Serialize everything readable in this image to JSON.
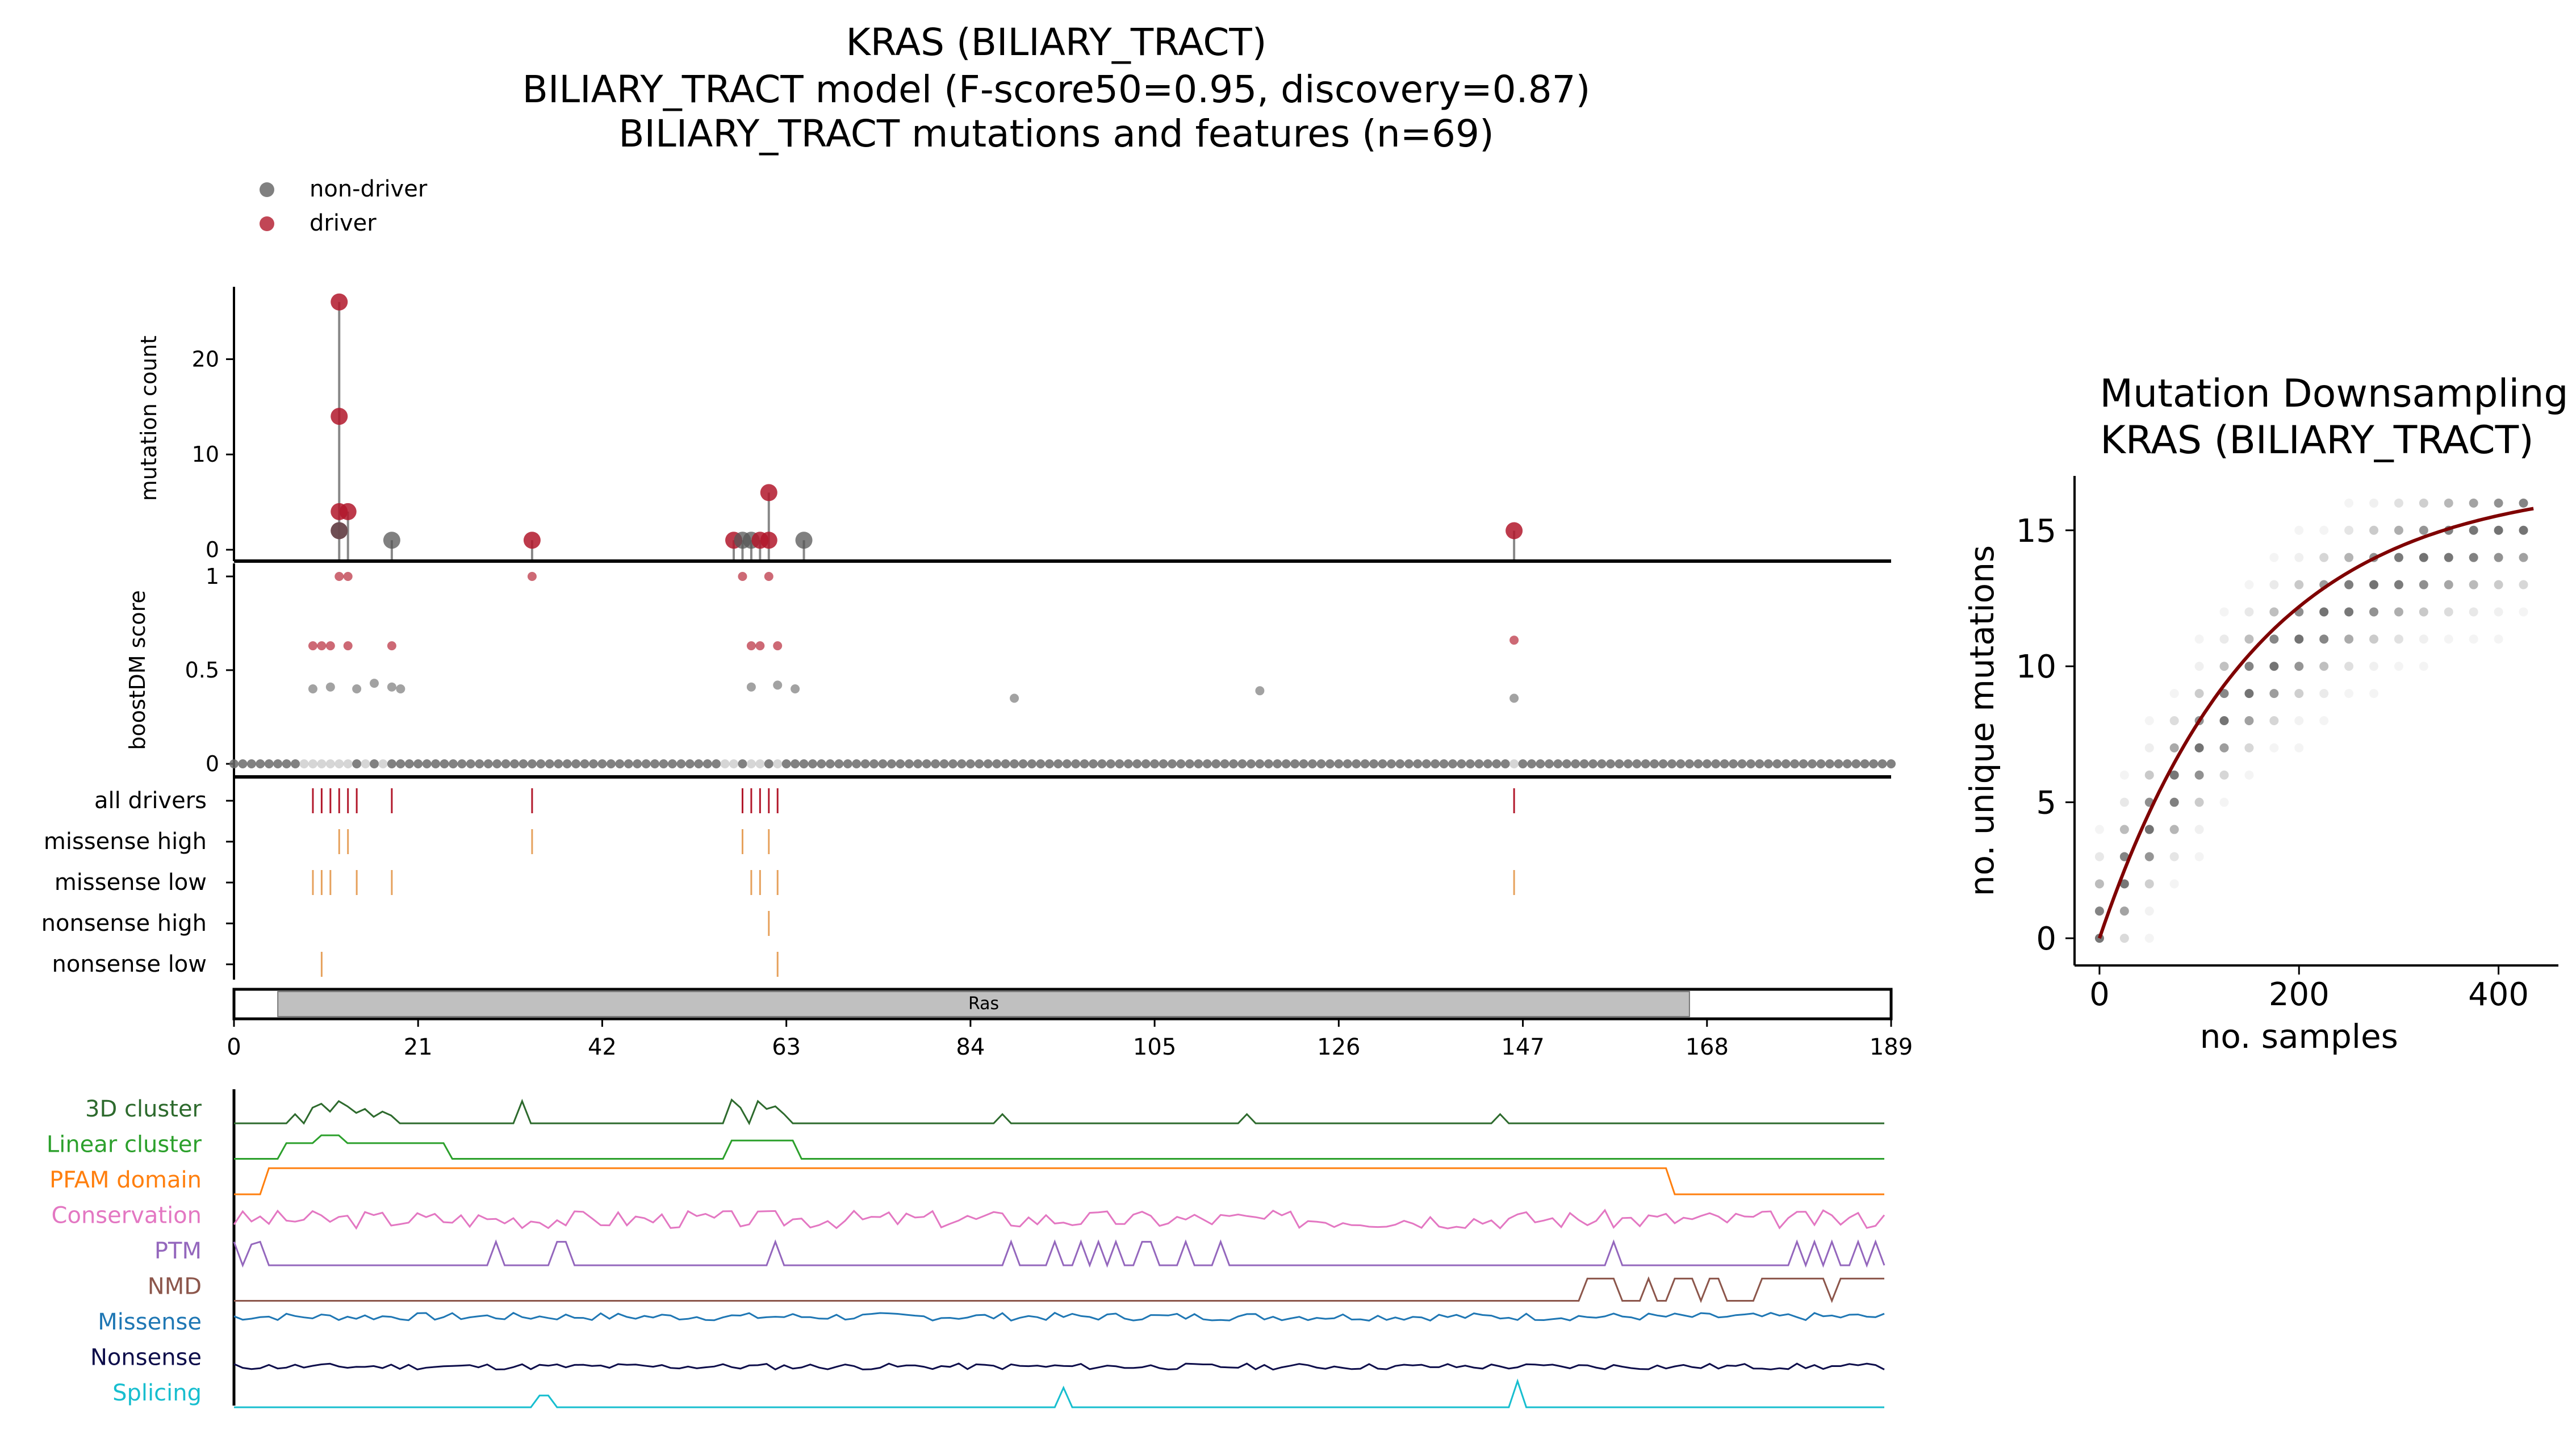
{
  "colors": {
    "driver": "#b2182b",
    "nondriver": "#555555",
    "stem": "#888888",
    "track_orange": "#e6a15c",
    "domain_fill": "#c0c0c0",
    "downsampling_curve": "#7f0000"
  },
  "main_title": {
    "line1": "KRAS (BILIARY_TRACT)",
    "line2": "BILIARY_TRACT model (F-score50=0.95, discovery=0.87)",
    "line3": "BILIARY_TRACT mutations and features (n=69)"
  },
  "legend": {
    "nondriver_label": "non-driver",
    "driver_label": "driver"
  },
  "chart_data": [
    {
      "type": "scatter",
      "name_key": "lollipop",
      "ylabel": "mutation count",
      "ylim": [
        0,
        27
      ],
      "yticks": [
        0,
        10,
        20
      ],
      "points": [
        {
          "x": 12,
          "y": 26,
          "driver": true
        },
        {
          "x": 12,
          "y": 14,
          "driver": true
        },
        {
          "x": 12,
          "y": 4,
          "driver": true
        },
        {
          "x": 13,
          "y": 4,
          "driver": true
        },
        {
          "x": 12,
          "y": 2,
          "driver": true
        },
        {
          "x": 12,
          "y": 2,
          "driver": false
        },
        {
          "x": 18,
          "y": 1,
          "driver": false
        },
        {
          "x": 34,
          "y": 1,
          "driver": true
        },
        {
          "x": 57,
          "y": 1,
          "driver": true
        },
        {
          "x": 58,
          "y": 1,
          "driver": false
        },
        {
          "x": 59,
          "y": 1,
          "driver": false
        },
        {
          "x": 60,
          "y": 1,
          "driver": true
        },
        {
          "x": 61,
          "y": 6,
          "driver": true
        },
        {
          "x": 61,
          "y": 1,
          "driver": true
        },
        {
          "x": 65,
          "y": 1,
          "driver": false
        },
        {
          "x": 146,
          "y": 2,
          "driver": true
        }
      ]
    },
    {
      "type": "scatter",
      "name_key": "boostdm",
      "ylabel": "boostDM score",
      "ylim": [
        0,
        1
      ],
      "yticks": [
        {
          "v": 0,
          "label": "0"
        },
        {
          "v": 0.5,
          "label": "0.5"
        },
        {
          "v": 1,
          "label": "1"
        }
      ],
      "baseline_gaps": [
        8,
        9,
        10,
        11,
        12,
        13,
        15,
        17,
        56,
        57,
        59,
        60,
        62,
        146
      ],
      "points": [
        {
          "x": 12,
          "y": 1,
          "driver": true
        },
        {
          "x": 13,
          "y": 1,
          "driver": true
        },
        {
          "x": 34,
          "y": 1,
          "driver": true
        },
        {
          "x": 58,
          "y": 1,
          "driver": true
        },
        {
          "x": 61,
          "y": 1,
          "driver": true
        },
        {
          "x": 9,
          "y": 0.63,
          "driver": true
        },
        {
          "x": 10,
          "y": 0.63,
          "driver": true
        },
        {
          "x": 11,
          "y": 0.63,
          "driver": true
        },
        {
          "x": 13,
          "y": 0.63,
          "driver": true
        },
        {
          "x": 18,
          "y": 0.63,
          "driver": true
        },
        {
          "x": 59,
          "y": 0.63,
          "driver": true
        },
        {
          "x": 60,
          "y": 0.63,
          "driver": true
        },
        {
          "x": 62,
          "y": 0.63,
          "driver": true
        },
        {
          "x": 146,
          "y": 0.66,
          "driver": true
        },
        {
          "x": 9,
          "y": 0.4,
          "driver": false
        },
        {
          "x": 11,
          "y": 0.41,
          "driver": false
        },
        {
          "x": 14,
          "y": 0.4,
          "driver": false
        },
        {
          "x": 16,
          "y": 0.43,
          "driver": false
        },
        {
          "x": 18,
          "y": 0.41,
          "driver": false
        },
        {
          "x": 19,
          "y": 0.4,
          "driver": false
        },
        {
          "x": 59,
          "y": 0.41,
          "driver": false
        },
        {
          "x": 62,
          "y": 0.42,
          "driver": false
        },
        {
          "x": 64,
          "y": 0.4,
          "driver": false
        },
        {
          "x": 89,
          "y": 0.35,
          "driver": false
        },
        {
          "x": 117,
          "y": 0.39,
          "driver": false
        },
        {
          "x": 146,
          "y": 0.35,
          "driver": false
        }
      ]
    },
    {
      "type": "table",
      "name_key": "consequences",
      "rows": [
        {
          "label": "all drivers",
          "color": "#b2182b",
          "x": [
            9,
            10,
            11,
            12,
            13,
            14,
            18,
            34,
            58,
            59,
            60,
            61,
            62,
            146
          ]
        },
        {
          "label": "missense high",
          "color": "#e6a15c",
          "x": [
            12,
            13,
            34,
            58,
            61
          ]
        },
        {
          "label": "missense low",
          "color": "#e6a15c",
          "x": [
            9,
            10,
            11,
            14,
            18,
            59,
            60,
            62,
            146
          ]
        },
        {
          "label": "nonsense high",
          "color": "#e6a15c",
          "x": [
            61
          ]
        },
        {
          "label": "nonsense low",
          "color": "#e6a15c",
          "x": [
            10,
            62
          ]
        }
      ]
    },
    {
      "type": "bar",
      "name_key": "domain_axis",
      "domains": [
        {
          "name": "Ras",
          "start": 5,
          "end": 166
        }
      ],
      "xlim": [
        0,
        189
      ],
      "xticks": [
        0,
        21,
        42,
        63,
        84,
        105,
        126,
        147,
        168,
        189
      ]
    },
    {
      "type": "line",
      "name_key": "features",
      "series": [
        {
          "name": "3D cluster",
          "color": "#2d6a2d",
          "kind": "peaks",
          "peaks": [
            [
              7,
              0.35
            ],
            [
              9,
              0.6
            ],
            [
              10,
              0.75
            ],
            [
              11,
              0.45
            ],
            [
              12,
              0.85
            ],
            [
              13,
              0.65
            ],
            [
              14,
              0.4
            ],
            [
              15,
              0.55
            ],
            [
              16,
              0.25
            ],
            [
              17,
              0.45
            ],
            [
              18,
              0.3
            ],
            [
              33,
              0.85
            ],
            [
              57,
              0.9
            ],
            [
              58,
              0.6
            ],
            [
              60,
              0.85
            ],
            [
              61,
              0.55
            ],
            [
              62,
              0.65
            ],
            [
              63,
              0.35
            ],
            [
              88,
              0.35
            ],
            [
              116,
              0.35
            ],
            [
              145,
              0.35
            ]
          ]
        },
        {
          "name": "Linear cluster",
          "color": "#2ca02c",
          "kind": "steps",
          "segments": [
            [
              6,
              24,
              0.6
            ],
            [
              10,
              12,
              0.9
            ],
            [
              57,
              64,
              0.7
            ]
          ]
        },
        {
          "name": "PFAM domain",
          "color": "#ff7f0e",
          "kind": "steps",
          "segments": [
            [
              4,
              164,
              1
            ]
          ]
        },
        {
          "name": "Conservation",
          "color": "#e377c2",
          "kind": "noise",
          "seed": 3,
          "base": 0.4,
          "amp": 0.35
        },
        {
          "name": "PTM",
          "color": "#9467bd",
          "kind": "peaks",
          "peaks": [
            [
              0,
              0.9
            ],
            [
              2,
              0.8
            ],
            [
              3,
              0.9
            ],
            [
              30,
              0.9
            ],
            [
              37,
              0.9
            ],
            [
              38,
              0.9
            ],
            [
              62,
              0.9
            ],
            [
              89,
              0.9
            ],
            [
              94,
              0.9
            ],
            [
              97,
              0.9
            ],
            [
              99,
              0.9
            ],
            [
              101,
              0.9
            ],
            [
              104,
              0.9
            ],
            [
              105,
              0.9
            ],
            [
              109,
              0.9
            ],
            [
              113,
              0.9
            ],
            [
              158,
              0.9
            ],
            [
              179,
              0.9
            ],
            [
              181,
              0.9
            ],
            [
              183,
              0.9
            ],
            [
              186,
              0.9
            ],
            [
              188,
              0.9
            ]
          ]
        },
        {
          "name": "NMD",
          "color": "#8c564b",
          "kind": "nmd",
          "start": 155
        },
        {
          "name": "Missense",
          "color": "#1f77b4",
          "kind": "noise",
          "seed": 7,
          "base": 0.75,
          "amp": 0.15
        },
        {
          "name": "Nonsense",
          "color": "#0d0d4a",
          "kind": "noise",
          "seed": 11,
          "base": 0.2,
          "amp": 0.12
        },
        {
          "name": "Splicing",
          "color": "#17becf",
          "kind": "peaks",
          "peaks": [
            [
              35,
              0.45
            ],
            [
              36,
              0.45
            ],
            [
              95,
              0.75
            ],
            [
              147,
              1
            ]
          ]
        }
      ]
    },
    {
      "type": "scatter",
      "name_key": "downsampling",
      "title_line1": "Mutation Downsampling",
      "title_line2": "KRAS (BILIARY_TRACT)",
      "xlabel": "no. samples",
      "ylabel": "no. unique mutations",
      "xlim": [
        -25,
        460
      ],
      "ylim": [
        -1,
        17
      ],
      "xticks": [
        0,
        200,
        400
      ],
      "yticks": [
        0,
        5,
        10,
        15
      ],
      "x_step": 25,
      "x_max": 425,
      "y_max": 16,
      "curve_coef": 0.0325,
      "curve_max_y": 15.8
    }
  ]
}
